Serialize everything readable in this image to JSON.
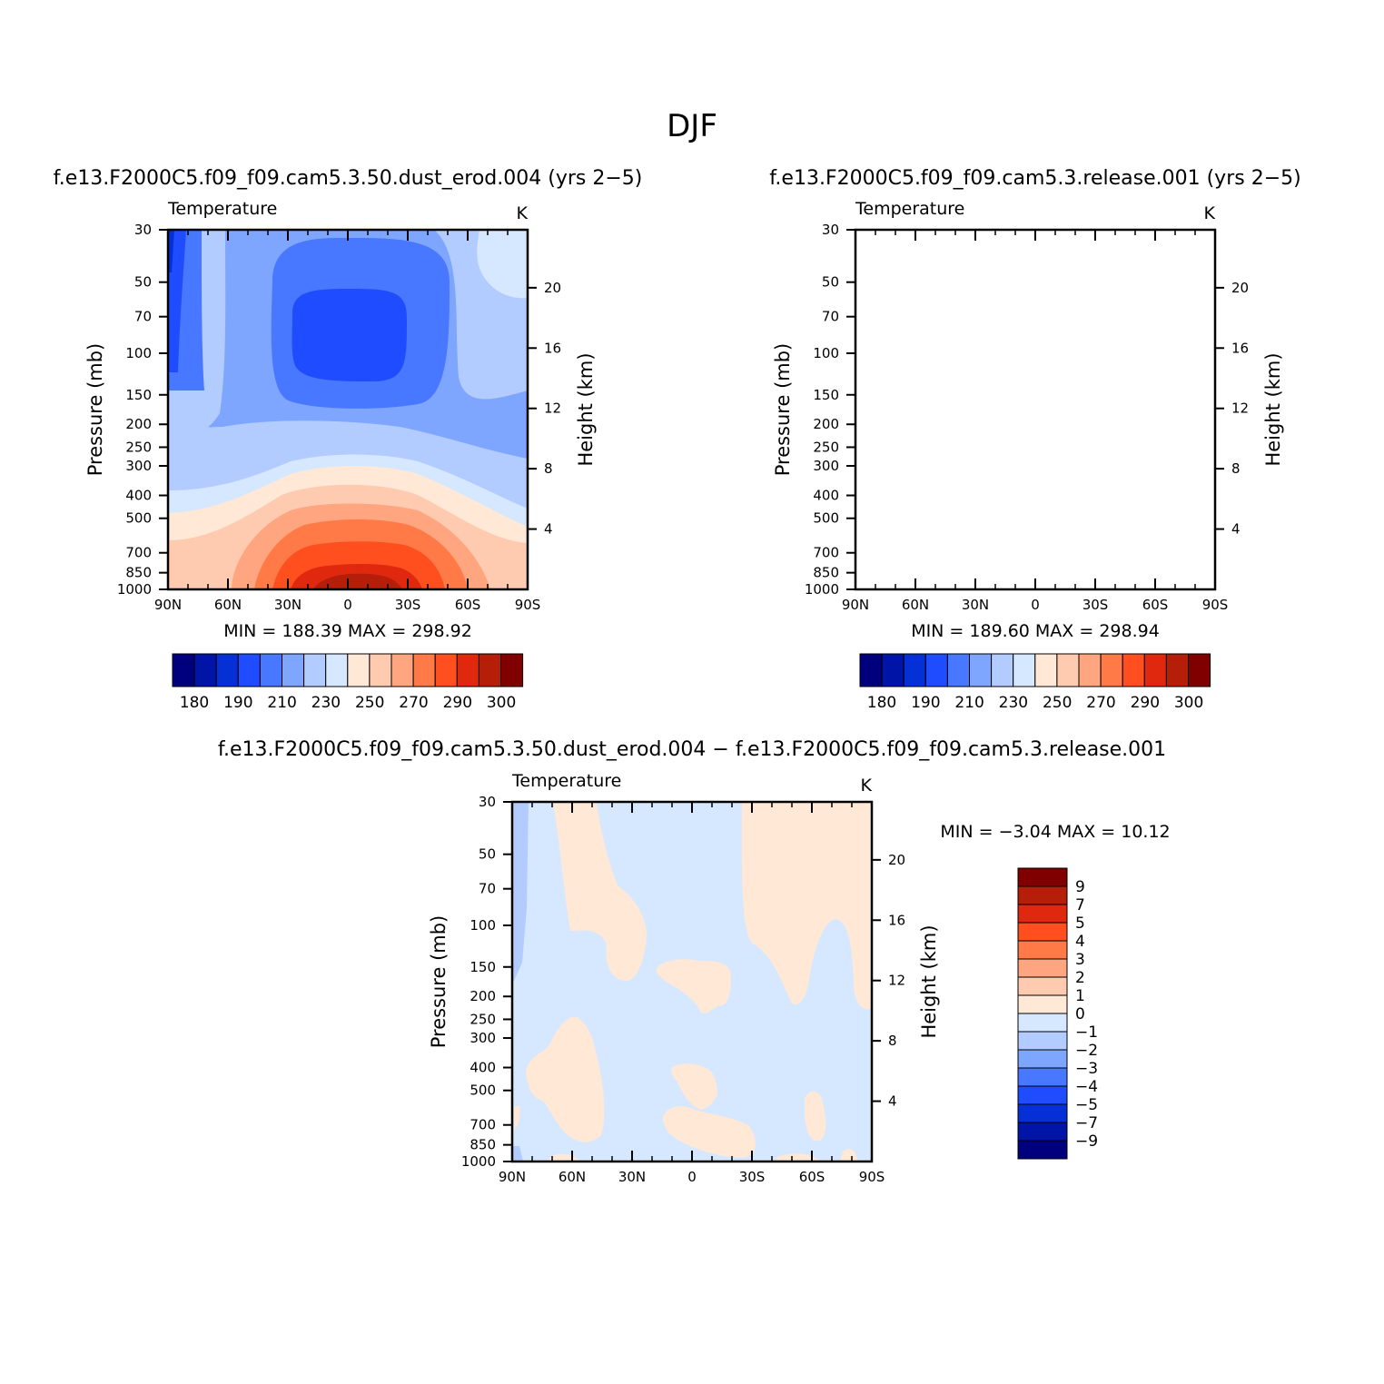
{
  "figure_title": "DJF",
  "palette": {
    "levels": [
      "#00007f",
      "#0014a8",
      "#0530d5",
      "#1f4cff",
      "#4778ff",
      "#7fa6ff",
      "#b3ccff",
      "#d6e8ff",
      "#ffe8d6",
      "#ffcbb0",
      "#ffa57f",
      "#ff7a47",
      "#ff4f1f",
      "#e0280f",
      "#b51e08",
      "#800000"
    ],
    "colorbar_labels_abs": [
      "180",
      "190",
      "210",
      "230",
      "250",
      "270",
      "290",
      "300"
    ],
    "colorbar_labels_diff": [
      "9",
      "7",
      "5",
      "4",
      "3",
      "2",
      "1",
      "0",
      "−1",
      "−2",
      "−3",
      "−4",
      "−5",
      "−7",
      "−9"
    ]
  },
  "chart_data": [
    {
      "type": "heatmap",
      "panel": "top-left",
      "title": "f.e13.F2000C5.f09_f09.cam5.3.50.dust_erod.004 (yrs 2−5)",
      "variable": "Temperature",
      "units": "K",
      "xlabel": "",
      "ylabel": "Pressure (mb)",
      "y2label": "Height (km)",
      "x_ticks": [
        "90N",
        "60N",
        "30N",
        "0",
        "30S",
        "60S",
        "90S"
      ],
      "x_range": [
        -90,
        90
      ],
      "y_ticks": [
        "30",
        "50",
        "70",
        "100",
        "150",
        "200",
        "250",
        "300",
        "400",
        "500",
        "700",
        "850",
        "1000"
      ],
      "y_range_mb": [
        30,
        1000
      ],
      "y2_ticks": [
        "20",
        "16",
        "12",
        "8",
        "4"
      ],
      "stats": "MIN = 188.39   MAX = 298.92",
      "min": 188.39,
      "max": 298.92,
      "contour_levels": [
        180,
        185,
        190,
        200,
        210,
        220,
        230,
        240,
        250,
        260,
        270,
        280,
        290,
        295,
        300
      ]
    },
    {
      "type": "heatmap",
      "panel": "top-right",
      "title": "f.e13.F2000C5.f09_f09.cam5.3.release.001 (yrs 2−5)",
      "variable": "Temperature",
      "units": "K",
      "xlabel": "",
      "ylabel": "Pressure (mb)",
      "y2label": "Height (km)",
      "x_ticks": [
        "90N",
        "60N",
        "30N",
        "0",
        "30S",
        "60S",
        "90S"
      ],
      "x_range": [
        -90,
        90
      ],
      "y_ticks": [
        "30",
        "50",
        "70",
        "100",
        "150",
        "200",
        "250",
        "300",
        "400",
        "500",
        "700",
        "850",
        "1000"
      ],
      "y_range_mb": [
        30,
        1000
      ],
      "y2_ticks": [
        "20",
        "16",
        "12",
        "8",
        "4"
      ],
      "stats": "MIN = 189.60   MAX = 298.94",
      "min": 189.6,
      "max": 298.94,
      "contour_levels": [
        180,
        185,
        190,
        200,
        210,
        220,
        230,
        240,
        250,
        260,
        270,
        280,
        290,
        295,
        300
      ]
    },
    {
      "type": "heatmap",
      "panel": "bottom",
      "title": "f.e13.F2000C5.f09_f09.cam5.3.50.dust_erod.004 − f.e13.F2000C5.f09_f09.cam5.3.release.001",
      "variable": "Temperature",
      "units": "K",
      "xlabel": "",
      "ylabel": "Pressure (mb)",
      "y2label": "Height (km)",
      "x_ticks": [
        "90N",
        "60N",
        "30N",
        "0",
        "30S",
        "60S",
        "90S"
      ],
      "x_range": [
        -90,
        90
      ],
      "y_ticks": [
        "30",
        "50",
        "70",
        "100",
        "150",
        "200",
        "250",
        "300",
        "400",
        "500",
        "700",
        "850",
        "1000"
      ],
      "y_range_mb": [
        30,
        1000
      ],
      "y2_ticks": [
        "20",
        "16",
        "12",
        "8",
        "4"
      ],
      "stats": "MIN =   −3.04   MAX =   10.12",
      "min": -3.04,
      "max": 10.12,
      "contour_levels": [
        -9,
        -7,
        -5,
        -4,
        -3,
        -2,
        -1,
        0,
        1,
        2,
        3,
        4,
        5,
        7,
        9
      ]
    }
  ]
}
